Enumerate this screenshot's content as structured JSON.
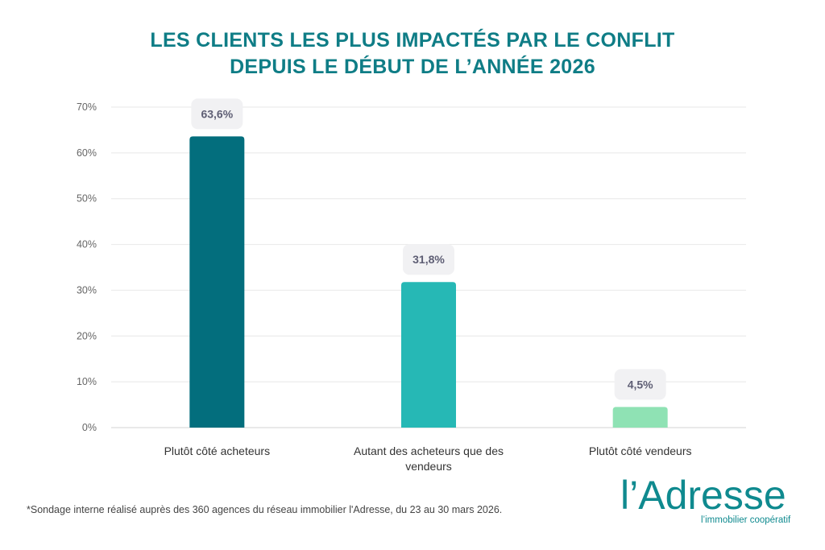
{
  "title_lines": [
    "LES CLIENTS LES PLUS IMPACTÉS PAR LE CONFLIT",
    "DEPUIS LE DÉBUT DE L’ANNÉE 2026"
  ],
  "chart_data": {
    "type": "bar",
    "title": "LES CLIENTS LES PLUS IMPACTÉS PAR LE CONFLIT DEPUIS LE DÉBUT DE L’ANNÉE 2026",
    "categories": [
      [
        "Plutôt côté acheteurs"
      ],
      [
        "Autant des acheteurs que des",
        "vendeurs"
      ],
      [
        "Plutôt côté vendeurs"
      ]
    ],
    "values": [
      63.6,
      31.8,
      4.5
    ],
    "data_labels": [
      "63,6%",
      "31,8%",
      "4,5%"
    ],
    "colors": [
      "#036e7d",
      "#26b8b5",
      "#8fe2b4"
    ],
    "ylim": [
      0,
      70
    ],
    "yticks": [
      0,
      10,
      20,
      30,
      40,
      50,
      60,
      70
    ],
    "ytick_labels": [
      "0%",
      "10%",
      "20%",
      "30%",
      "40%",
      "50%",
      "60%",
      "70%"
    ],
    "grid": true,
    "xlabel": "",
    "ylabel": ""
  },
  "footnote": "*Sondage interne réalisé auprès des 360 agences du réseau immobilier l'Adresse, du 23 au 30 mars 2026.",
  "logo": {
    "name": "l’Adresse",
    "tagline": "l’immobilier coopératif"
  }
}
